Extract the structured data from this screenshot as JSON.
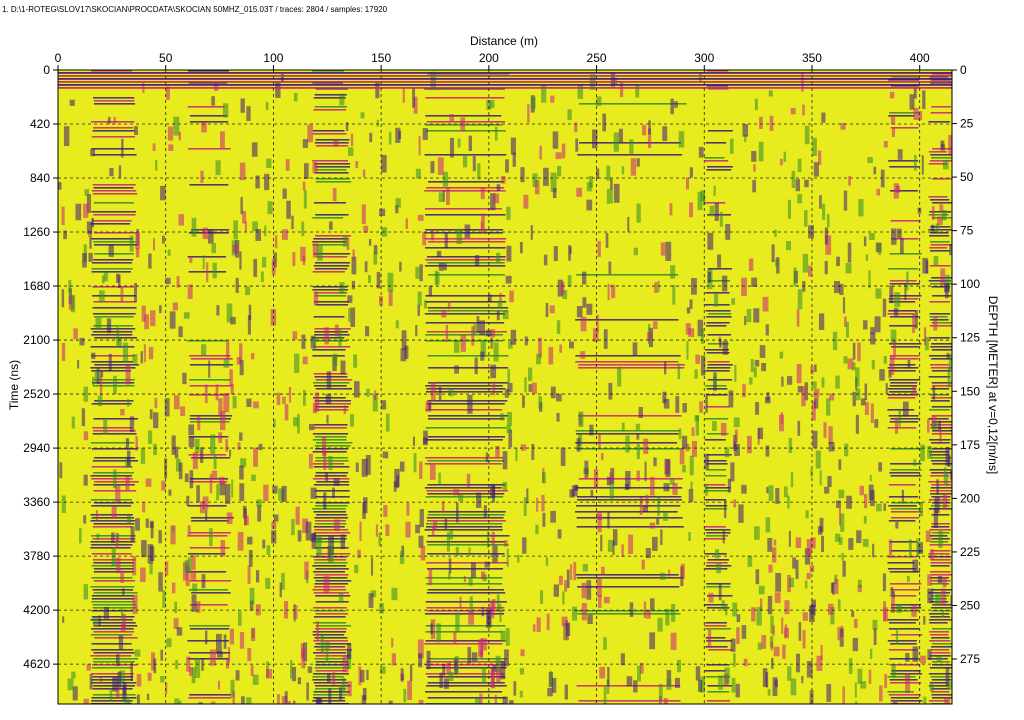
{
  "header": "1. D:\\1-ROTEG\\SLOV17\\SKOCIAN\\PROCDATA\\SKOCIAN 50MHZ_015.03T / traces: 2804 / samples: 17920",
  "colors": {
    "background_fill": "#e8ec1e",
    "ridge_dark": "#3a1a78",
    "ridge_magenta": "#c8207c",
    "ridge_green": "#2f8a2a",
    "grid": "#222222"
  },
  "chart_data": {
    "type": "heatmap",
    "title": "",
    "xlabel": "Distance (m)",
    "ylabel": "Time (ns)",
    "y2label": "DEPTH [METER] at v=0,12[m/ns]",
    "xlim": [
      0,
      415
    ],
    "ylim": [
      0,
      4930
    ],
    "y2lim": [
      0,
      296
    ],
    "x_ticks": [
      "0",
      "50",
      "100",
      "150",
      "200",
      "250",
      "300",
      "350",
      "400"
    ],
    "y_ticks": [
      "0",
      "420",
      "840",
      "1260",
      "1680",
      "2100",
      "2520",
      "2940",
      "3360",
      "3780",
      "4200",
      "4620"
    ],
    "y2_ticks": [
      "0",
      "25",
      "50",
      "75",
      "100",
      "125",
      "150",
      "175",
      "200",
      "225",
      "250",
      "275"
    ],
    "grid": true,
    "traces": 2804,
    "samples": 17920
  }
}
